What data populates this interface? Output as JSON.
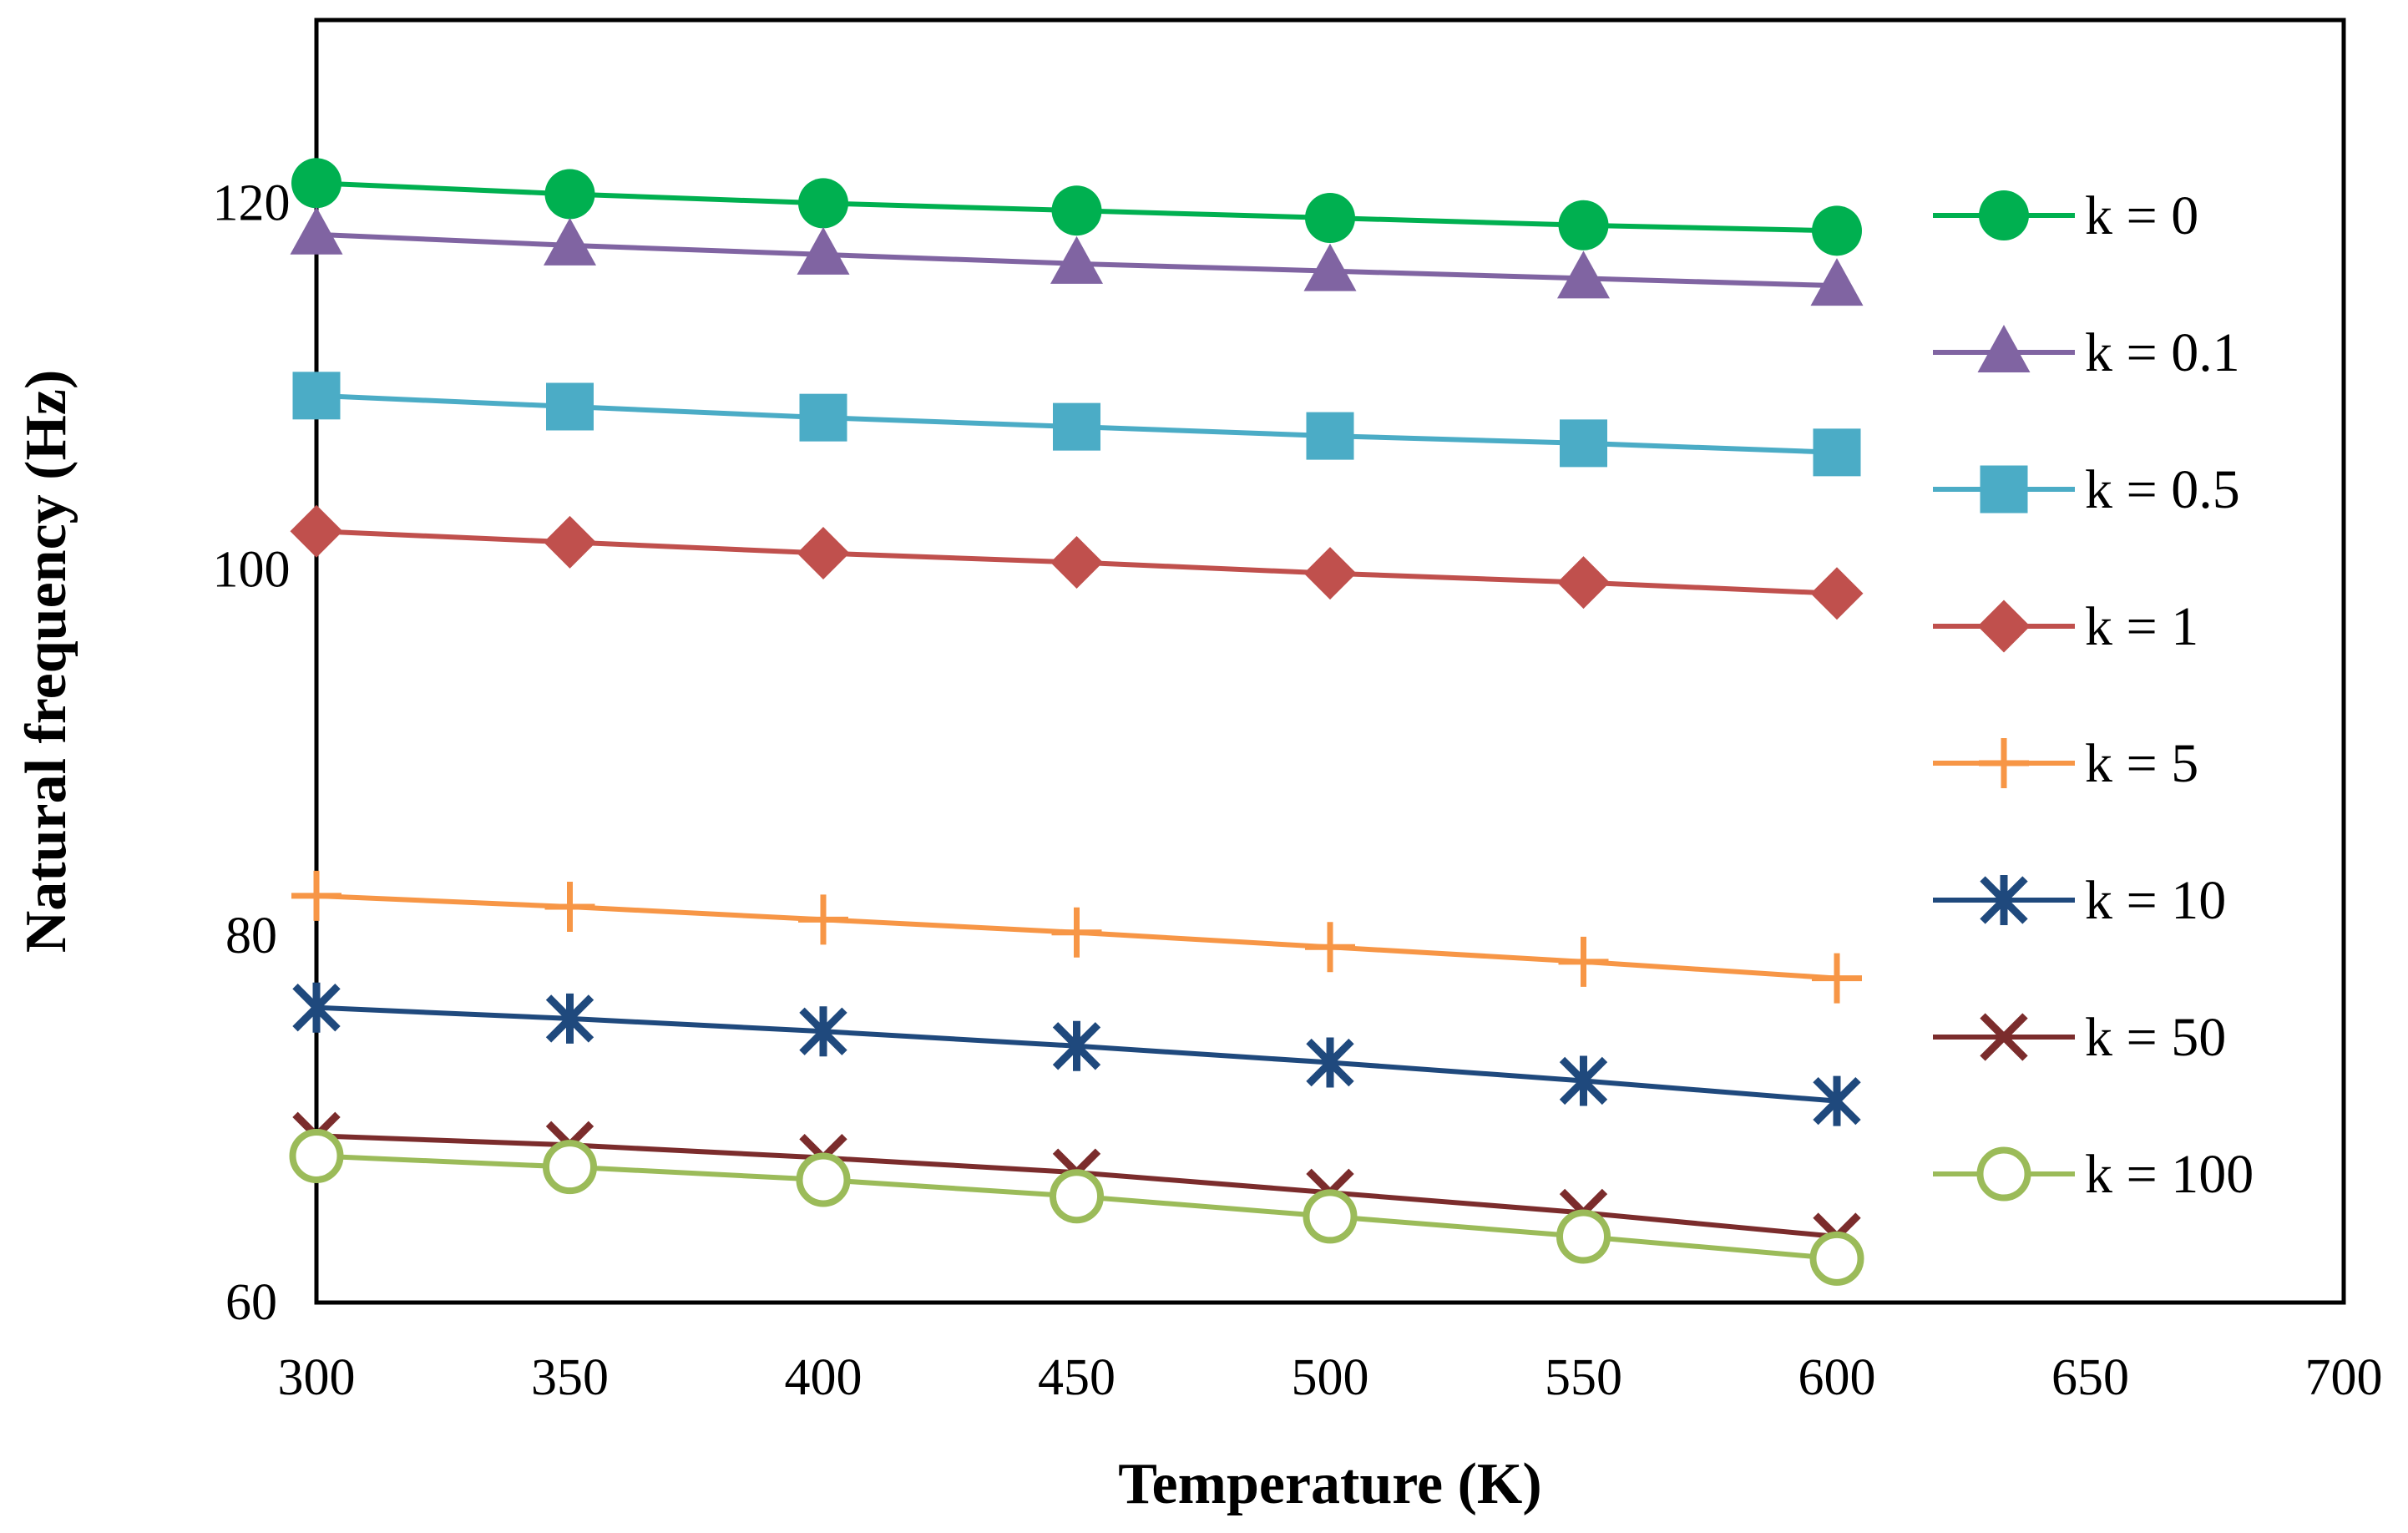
{
  "chart_data": {
    "type": "line",
    "title": "",
    "xlabel": "Temperature (K)",
    "ylabel": "Natural frequency (Hz)",
    "xlim": [
      300,
      700
    ],
    "ylim": [
      60,
      130
    ],
    "xticks": [
      300,
      350,
      400,
      450,
      500,
      550,
      600,
      650,
      700
    ],
    "yticks": [
      60,
      80,
      100,
      120
    ],
    "grid": false,
    "legend_position": "right",
    "x": [
      300,
      350,
      400,
      450,
      500,
      550,
      600
    ],
    "series": [
      {
        "name": "k = 0",
        "marker": "circle",
        "color": "#00b050",
        "values": [
          121.1,
          120.5,
          120.0,
          119.6,
          119.2,
          118.8,
          118.5
        ]
      },
      {
        "name": "k = 0.1",
        "marker": "triangle",
        "color": "#8064a2",
        "values": [
          118.3,
          117.7,
          117.2,
          116.7,
          116.3,
          115.9,
          115.5
        ]
      },
      {
        "name": "k = 0.5",
        "marker": "square",
        "color": "#4bacc6",
        "values": [
          109.5,
          108.9,
          108.3,
          107.8,
          107.3,
          106.9,
          106.4
        ]
      },
      {
        "name": "k = 1",
        "marker": "diamond",
        "color": "#c0504d",
        "values": [
          102.1,
          101.5,
          100.9,
          100.4,
          99.8,
          99.3,
          98.7
        ]
      },
      {
        "name": "k = 5",
        "marker": "plus",
        "color": "#f79646",
        "values": [
          82.2,
          81.6,
          80.9,
          80.2,
          79.4,
          78.6,
          77.7
        ]
      },
      {
        "name": "k = 10",
        "marker": "asterisk",
        "color": "#1f497d",
        "values": [
          76.1,
          75.5,
          74.8,
          74.0,
          73.1,
          72.1,
          71.0
        ]
      },
      {
        "name": "k = 50",
        "marker": "x",
        "color": "#7b2c2c",
        "values": [
          69.1,
          68.6,
          67.9,
          67.1,
          66.0,
          64.9,
          63.6
        ]
      },
      {
        "name": "k = 100",
        "marker": "open-circle",
        "color": "#9bbb59",
        "values": [
          68.0,
          67.4,
          66.7,
          65.8,
          64.7,
          63.6,
          62.4
        ]
      }
    ]
  }
}
